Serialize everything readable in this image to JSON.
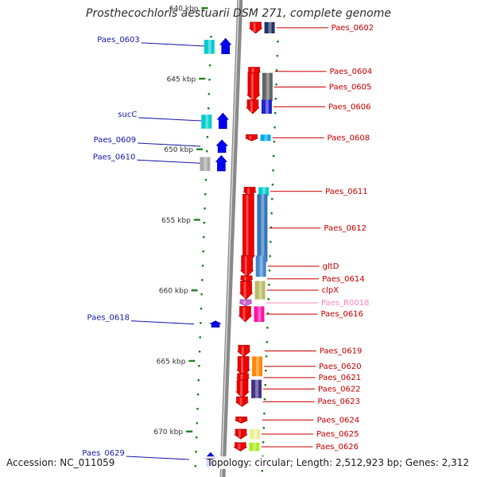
{
  "title": "Prosthecochloris aestuarii DSM 271, complete genome",
  "footer": {
    "accession": "Accession: NC_011059",
    "summary": "Topology: circular; Length: 2,512,923 bp; Genes: 2,312"
  },
  "colors": {
    "backbone": "#8a8a8a",
    "tick": "#2a8a2a",
    "leftLabel": "#1a1aaa",
    "rightLabel": "#cc0000",
    "pinkLabel": "#ff88bb"
  },
  "ruler": [
    {
      "label": "640 kbp",
      "kbp": 640
    },
    {
      "label": "645 kbp",
      "kbp": 645
    },
    {
      "label": "650 kbp",
      "kbp": 650
    },
    {
      "label": "655 kbp",
      "kbp": 655
    },
    {
      "label": "660 kbp",
      "kbp": 660
    },
    {
      "label": "665 kbp",
      "kbp": 665
    },
    {
      "label": "670 kbp",
      "kbp": 670
    }
  ],
  "leftGenes": [
    {
      "label": "Paes_0603",
      "kbp": 642.7,
      "sizeKbp": 1.1,
      "cog": "#00cccc",
      "arrow": "#0000ee"
    },
    {
      "label": "sucC",
      "kbp": 648.0,
      "sizeKbp": 1.1,
      "cog": "#00cccc",
      "arrow": "#0000ee"
    },
    {
      "label": "Paes_0609",
      "kbp": 649.8,
      "sizeKbp": 0.9,
      "cog": "",
      "arrow": "#0000ee"
    },
    {
      "label": "Paes_0610",
      "kbp": 651.0,
      "sizeKbp": 1.1,
      "cog": "#aaaaaa",
      "arrow": "#0000ee"
    },
    {
      "label": "Paes_0618",
      "kbp": 662.4,
      "sizeKbp": 0.3,
      "cog": "",
      "arrow": "#0000ee"
    },
    {
      "label": "Paes_0629",
      "kbp": 672.0,
      "sizeKbp": 1.0,
      "cog": "",
      "arrow": "#0000ee"
    }
  ],
  "rightGenes": [
    {
      "label": "Paes_0602",
      "kbp": 641.4,
      "sizeKbp": 0.8,
      "cog": "#223366",
      "arrow": "#ee0000",
      "color": "#cc0000"
    },
    {
      "label": "Paes_0604",
      "kbp": 644.5,
      "sizeKbp": 0.6,
      "cog": "",
      "arrow": "#ee0000",
      "color": "#cc0000"
    },
    {
      "label": "Paes_0605",
      "kbp": 645.6,
      "sizeKbp": 2.0,
      "cog": "#666666",
      "arrow": "#ee0000",
      "color": "#cc0000"
    },
    {
      "label": "Paes_0606",
      "kbp": 647.0,
      "sizeKbp": 1.0,
      "cog": "#2222cc",
      "arrow": "#ee0000",
      "color": "#cc0000"
    },
    {
      "label": "Paes_0608",
      "kbp": 649.2,
      "sizeKbp": 0.4,
      "cog": "#00aaee",
      "arrow": "#ee0000",
      "color": "#cc0000"
    },
    {
      "label": "Paes_0611",
      "kbp": 653.0,
      "sizeKbp": 0.6,
      "cog": "#00cccc",
      "arrow": "#ee0000",
      "color": "#cc0000"
    },
    {
      "label": "Paes_0612",
      "kbp": 655.6,
      "sizeKbp": 4.8,
      "cog": "#3377bb",
      "arrow": "#ee0000",
      "color": "#cc0000"
    },
    {
      "label": "gltD",
      "kbp": 658.3,
      "sizeKbp": 1.5,
      "cog": "#4488cc",
      "arrow": "#ee0000",
      "color": "#cc0000"
    },
    {
      "label": "Paes_0614",
      "kbp": 659.2,
      "sizeKbp": 0.3,
      "cog": "",
      "arrow": "#ee0000",
      "color": "#cc0000"
    },
    {
      "label": "clpX",
      "kbp": 660.0,
      "sizeKbp": 1.3,
      "cog": "#bbbb66",
      "arrow": "#ee0000",
      "color": "#cc0000"
    },
    {
      "label": "Paes_R0018",
      "kbp": 660.9,
      "sizeKbp": 0.2,
      "cog": "",
      "arrow": "#cc66cc",
      "color": "#ff88bb"
    },
    {
      "label": "Paes_0616",
      "kbp": 661.7,
      "sizeKbp": 1.1,
      "cog": "#ff11aa",
      "arrow": "#ee0000",
      "color": "#cc0000"
    },
    {
      "label": "Paes_0619",
      "kbp": 664.3,
      "sizeKbp": 0.8,
      "cog": "",
      "arrow": "#ee0000",
      "color": "#cc0000"
    },
    {
      "label": "Paes_0620",
      "kbp": 665.4,
      "sizeKbp": 1.4,
      "cog": "#ff8800",
      "arrow": "#ee0000",
      "color": "#cc0000"
    },
    {
      "label": "Paes_0621",
      "kbp": 666.2,
      "sizeKbp": 0.6,
      "cog": "",
      "arrow": "#ee0000",
      "color": "#cc0000"
    },
    {
      "label": "Paes_0622",
      "kbp": 667.0,
      "sizeKbp": 1.3,
      "cog": "#443388",
      "arrow": "#ee0000",
      "color": "#cc0000"
    },
    {
      "label": "Paes_0623",
      "kbp": 667.9,
      "sizeKbp": 0.7,
      "cog": "",
      "arrow": "#ee0000",
      "color": "#cc0000"
    },
    {
      "label": "Paes_0624",
      "kbp": 669.2,
      "sizeKbp": 0.4,
      "cog": "",
      "arrow": "#ee0000",
      "color": "#cc0000"
    },
    {
      "label": "Paes_0625",
      "kbp": 670.2,
      "sizeKbp": 0.7,
      "cog": "#eeee99",
      "arrow": "#ee0000",
      "color": "#cc0000"
    },
    {
      "label": "Paes_0626",
      "kbp": 671.1,
      "sizeKbp": 0.6,
      "cog": "#aaee22",
      "arrow": "#ee0000",
      "color": "#cc0000"
    }
  ]
}
